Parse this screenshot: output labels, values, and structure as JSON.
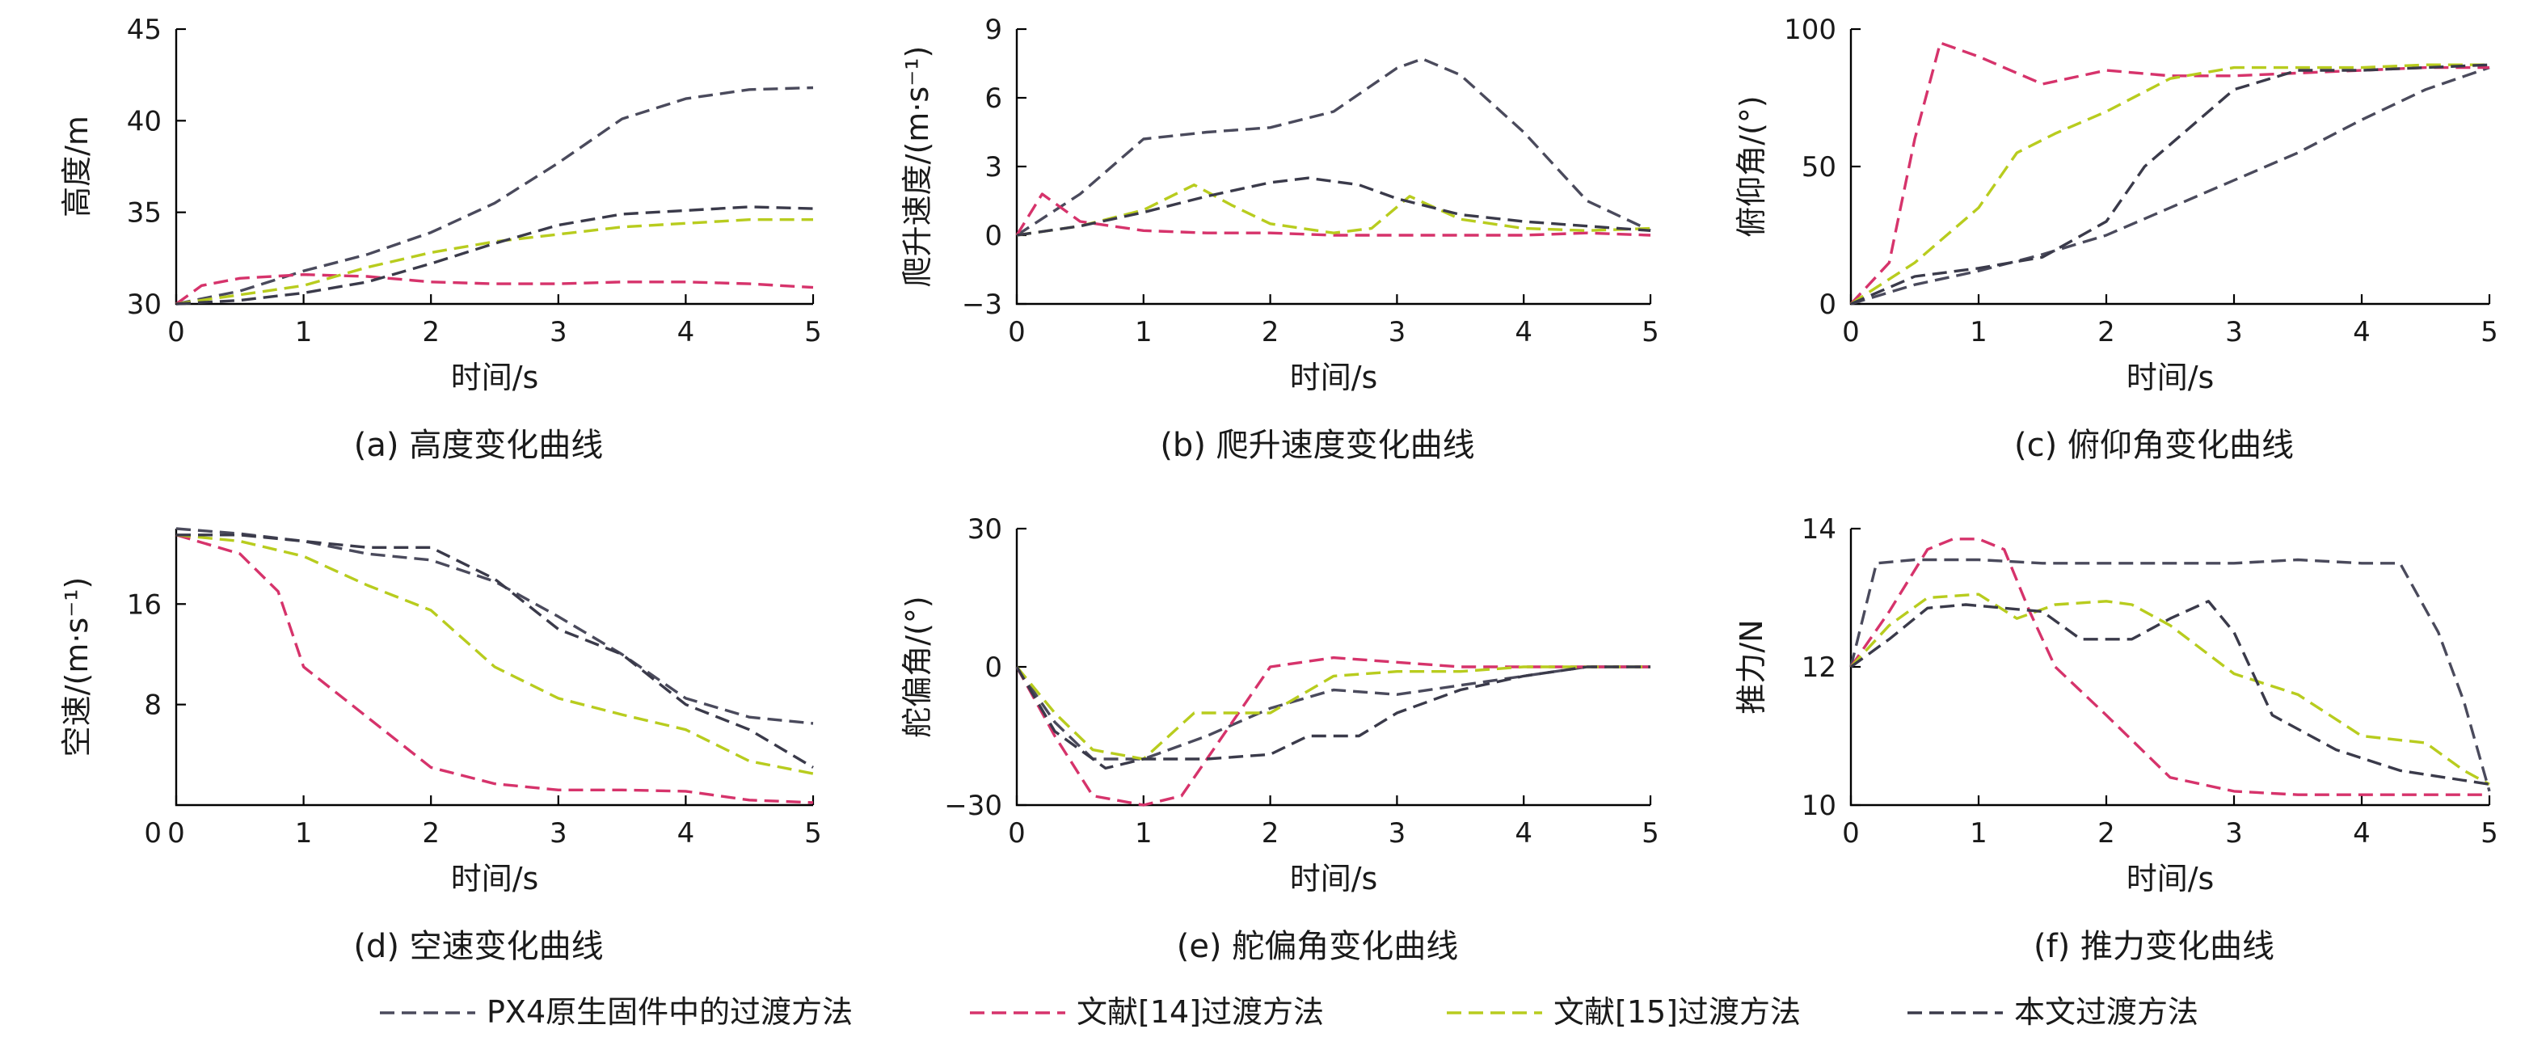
{
  "legend": [
    {
      "key": "px4",
      "label": "PX4原生固件中的过渡方法"
    },
    {
      "key": "ref14",
      "label": "文献[14]过渡方法"
    },
    {
      "key": "ref15",
      "label": "文献[15]过渡方法"
    },
    {
      "key": "ours",
      "label": "本文过渡方法"
    }
  ],
  "colors": {
    "px4": "#4a4a5c",
    "ref14": "#d6336b",
    "ref15": "#b8cc1e",
    "ours": "#3a3a4a",
    "axis": "#000000"
  },
  "chart_data": [
    {
      "type": "line",
      "caption": "(a) 高度变化曲线",
      "xlabel": "时间/s",
      "ylabel": "高度/m",
      "xlim": [
        0,
        5
      ],
      "ylim": [
        30,
        45
      ],
      "xticks": [
        0,
        1,
        2,
        3,
        4,
        5
      ],
      "yticks": [
        30,
        35,
        40,
        45
      ],
      "series": [
        {
          "key": "px4",
          "x": [
            0,
            0.5,
            1,
            1.5,
            2,
            2.5,
            3,
            3.5,
            4,
            4.5,
            5
          ],
          "y": [
            30,
            30.7,
            31.8,
            32.7,
            33.9,
            35.5,
            37.7,
            40.1,
            41.2,
            41.7,
            41.8
          ]
        },
        {
          "key": "ref14",
          "x": [
            0,
            0.2,
            0.5,
            1,
            1.5,
            2,
            2.5,
            3,
            3.5,
            4,
            4.5,
            5
          ],
          "y": [
            30,
            31,
            31.4,
            31.6,
            31.5,
            31.2,
            31.1,
            31.1,
            31.2,
            31.2,
            31.1,
            30.9
          ]
        },
        {
          "key": "ref15",
          "x": [
            0,
            0.5,
            1,
            1.5,
            2,
            2.5,
            3,
            3.5,
            4,
            4.5,
            5
          ],
          "y": [
            30,
            30.5,
            31,
            32,
            32.8,
            33.4,
            33.8,
            34.2,
            34.4,
            34.6,
            34.6
          ]
        },
        {
          "key": "ours",
          "x": [
            0,
            0.5,
            1,
            1.5,
            2,
            2.5,
            3,
            3.5,
            4,
            4.5,
            5
          ],
          "y": [
            30,
            30.2,
            30.6,
            31.2,
            32.2,
            33.3,
            34.3,
            34.9,
            35.1,
            35.3,
            35.2
          ]
        }
      ]
    },
    {
      "type": "line",
      "caption": "(b) 爬升速度变化曲线",
      "xlabel": "时间/s",
      "ylabel": "爬升速度/(m·s⁻¹)",
      "xlim": [
        0,
        5
      ],
      "ylim": [
        -3,
        9
      ],
      "xticks": [
        0,
        1,
        2,
        3,
        4,
        5
      ],
      "yticks": [
        -3,
        0,
        3,
        6,
        9
      ],
      "series": [
        {
          "key": "px4",
          "x": [
            0,
            0.5,
            1,
            1.5,
            2,
            2.5,
            3,
            3.2,
            3.5,
            4,
            4.5,
            5
          ],
          "y": [
            0,
            1.8,
            4.2,
            4.5,
            4.7,
            5.4,
            7.3,
            7.7,
            7,
            4.5,
            1.5,
            0.2
          ]
        },
        {
          "key": "ref14",
          "x": [
            0,
            0.2,
            0.5,
            1,
            1.5,
            2,
            2.5,
            3,
            3.5,
            4,
            4.5,
            5
          ],
          "y": [
            0,
            1.8,
            0.6,
            0.2,
            0.1,
            0.1,
            0,
            0,
            0,
            0,
            0.1,
            0
          ]
        },
        {
          "key": "ref15",
          "x": [
            0,
            0.5,
            1,
            1.4,
            1.7,
            2,
            2.5,
            2.8,
            3.1,
            3.5,
            4,
            4.5,
            5
          ],
          "y": [
            0,
            0.4,
            1.1,
            2.2,
            1.3,
            0.5,
            0.1,
            0.3,
            1.7,
            0.7,
            0.3,
            0.2,
            0.3
          ]
        },
        {
          "key": "ours",
          "x": [
            0,
            0.5,
            1,
            1.5,
            2,
            2.3,
            2.7,
            3,
            3.5,
            4,
            4.5,
            5
          ],
          "y": [
            0,
            0.4,
            1,
            1.7,
            2.3,
            2.5,
            2.2,
            1.6,
            0.9,
            0.6,
            0.4,
            0.2
          ]
        }
      ]
    },
    {
      "type": "line",
      "caption": "(c) 俯仰角变化曲线",
      "xlabel": "时间/s",
      "ylabel": "俯仰角/(°)",
      "xlim": [
        0,
        5
      ],
      "ylim": [
        0,
        100
      ],
      "xticks": [
        0,
        1,
        2,
        3,
        4,
        5
      ],
      "yticks": [
        0,
        50,
        100
      ],
      "series": [
        {
          "key": "px4",
          "x": [
            0,
            0.5,
            1,
            1.5,
            2,
            2.5,
            3,
            3.5,
            4,
            4.5,
            5
          ],
          "y": [
            0,
            7,
            12,
            18,
            25,
            35,
            45,
            55,
            67,
            78,
            86
          ]
        },
        {
          "key": "ref14",
          "x": [
            0,
            0.3,
            0.5,
            0.7,
            1,
            1.5,
            2,
            2.5,
            3,
            3.5,
            4,
            4.5,
            5
          ],
          "y": [
            0,
            15,
            60,
            95,
            90,
            80,
            85,
            83,
            83,
            84,
            85,
            86,
            86
          ]
        },
        {
          "key": "ref15",
          "x": [
            0,
            0.5,
            1,
            1.3,
            1.6,
            2,
            2.5,
            3,
            3.5,
            4,
            4.5,
            5
          ],
          "y": [
            0,
            15,
            35,
            55,
            62,
            70,
            82,
            86,
            86,
            86,
            87,
            87
          ]
        },
        {
          "key": "ours",
          "x": [
            0,
            0.5,
            1,
            1.5,
            2,
            2.3,
            2.6,
            3,
            3.5,
            4,
            4.5,
            5
          ],
          "y": [
            0,
            10,
            13,
            17,
            30,
            50,
            62,
            78,
            85,
            85,
            86,
            87
          ]
        }
      ]
    },
    {
      "type": "line",
      "caption": "(d) 空速变化曲线",
      "xlabel": "时间/s",
      "ylabel": "空速/(m·s⁻¹)",
      "xlim": [
        0,
        5
      ],
      "ylim": [
        0,
        22
      ],
      "xticks": [
        0,
        1,
        2,
        3,
        4,
        5
      ],
      "yticks": [
        8,
        16
      ],
      "series": [
        {
          "key": "px4",
          "x": [
            0,
            0.5,
            1,
            1.5,
            2,
            2.5,
            3,
            3.5,
            4,
            4.5,
            5
          ],
          "y": [
            22,
            21.6,
            21,
            20,
            19.5,
            17.8,
            15,
            12,
            8.5,
            7,
            6.5
          ]
        },
        {
          "key": "ref14",
          "x": [
            0,
            0.5,
            0.8,
            1,
            1.5,
            2,
            2.5,
            3,
            3.5,
            4,
            4.5,
            5
          ],
          "y": [
            21.5,
            20,
            17,
            11,
            7,
            3,
            1.7,
            1.2,
            1.2,
            1.1,
            0.4,
            0.2
          ]
        },
        {
          "key": "ref15",
          "x": [
            0,
            0.5,
            1,
            1.5,
            2,
            2.5,
            3,
            3.5,
            4,
            4.5,
            5
          ],
          "y": [
            21.5,
            21,
            19.8,
            17.5,
            15.5,
            11,
            8.5,
            7.2,
            6,
            3.5,
            2.5
          ]
        },
        {
          "key": "ours",
          "x": [
            0,
            0.5,
            1,
            1.5,
            2,
            2.5,
            3,
            3.5,
            4,
            4.5,
            5
          ],
          "y": [
            21.5,
            21.5,
            21,
            20.5,
            20.5,
            18,
            14,
            12,
            8,
            6,
            3
          ]
        }
      ]
    },
    {
      "type": "line",
      "caption": "(e) 舵偏角变化曲线",
      "xlabel": "时间/s",
      "ylabel": "舵偏角/(°)",
      "xlim": [
        0,
        5
      ],
      "ylim": [
        -30,
        30
      ],
      "xticks": [
        0,
        1,
        2,
        3,
        4,
        5
      ],
      "yticks": [
        -30,
        0,
        30
      ],
      "series": [
        {
          "key": "px4",
          "x": [
            0,
            0.3,
            0.6,
            1,
            1.5,
            2,
            2.5,
            3,
            3.5,
            4,
            4.5,
            5
          ],
          "y": [
            0,
            -12,
            -20,
            -20,
            -15,
            -9,
            -5,
            -6,
            -4,
            -2,
            0,
            0
          ]
        },
        {
          "key": "ref14",
          "x": [
            0,
            0.3,
            0.6,
            1,
            1.3,
            1.7,
            2,
            2.5,
            3,
            3.5,
            4,
            4.5,
            5
          ],
          "y": [
            0,
            -15,
            -28,
            -30,
            -28,
            -12,
            0,
            2,
            1,
            0,
            0,
            0,
            0
          ]
        },
        {
          "key": "ref15",
          "x": [
            0,
            0.3,
            0.6,
            1,
            1.4,
            2,
            2.5,
            3,
            3.5,
            4,
            4.5,
            5
          ],
          "y": [
            0,
            -10,
            -18,
            -20,
            -10,
            -10,
            -2,
            -1,
            -1,
            0,
            0,
            0
          ]
        },
        {
          "key": "ours",
          "x": [
            0,
            0.3,
            0.7,
            1,
            1.5,
            2,
            2.3,
            2.7,
            3,
            3.5,
            4,
            4.5,
            5
          ],
          "y": [
            0,
            -14,
            -22,
            -20,
            -20,
            -19,
            -15,
            -15,
            -10,
            -5,
            -2,
            0,
            0
          ]
        }
      ]
    },
    {
      "type": "line",
      "caption": "(f) 推力变化曲线",
      "xlabel": "时间/s",
      "ylabel": "推力/N",
      "xlim": [
        0,
        5
      ],
      "ylim": [
        10,
        14
      ],
      "xticks": [
        0,
        1,
        2,
        3,
        4,
        5
      ],
      "yticks": [
        10,
        12,
        14
      ],
      "series": [
        {
          "key": "px4",
          "x": [
            0,
            0.2,
            0.5,
            1,
            1.5,
            2,
            2.5,
            3,
            3.5,
            4,
            4.3,
            4.6,
            4.8,
            5
          ],
          "y": [
            12,
            13.5,
            13.55,
            13.55,
            13.5,
            13.5,
            13.5,
            13.5,
            13.55,
            13.5,
            13.5,
            12.5,
            11.5,
            10.2
          ]
        },
        {
          "key": "ref14",
          "x": [
            0,
            0.3,
            0.6,
            0.8,
            1,
            1.2,
            1.4,
            1.6,
            2,
            2.5,
            3,
            3.5,
            4,
            4.5,
            5
          ],
          "y": [
            12,
            12.8,
            13.7,
            13.85,
            13.85,
            13.7,
            12.8,
            12,
            11.3,
            10.4,
            10.2,
            10.15,
            10.15,
            10.15,
            10.15
          ]
        },
        {
          "key": "ref15",
          "x": [
            0,
            0.3,
            0.6,
            1,
            1.3,
            1.6,
            2,
            2.2,
            2.5,
            3,
            3.5,
            4,
            4.5,
            4.8,
            5
          ],
          "y": [
            12,
            12.6,
            13,
            13.05,
            12.7,
            12.9,
            12.95,
            12.9,
            12.6,
            11.9,
            11.6,
            11,
            10.9,
            10.5,
            10.3
          ]
        },
        {
          "key": "ours",
          "x": [
            0,
            0.3,
            0.6,
            0.9,
            1.2,
            1.5,
            1.8,
            2.2,
            2.5,
            2.8,
            3,
            3.3,
            3.8,
            4.3,
            5
          ],
          "y": [
            12,
            12.4,
            12.85,
            12.9,
            12.85,
            12.8,
            12.4,
            12.4,
            12.7,
            12.95,
            12.5,
            11.3,
            10.8,
            10.5,
            10.3
          ]
        }
      ]
    }
  ]
}
